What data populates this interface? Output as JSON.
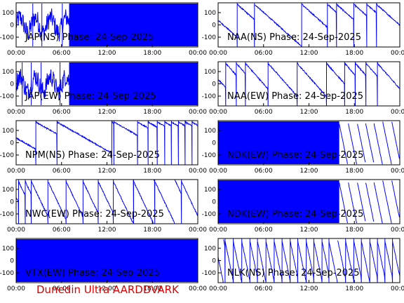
{
  "footer": "Dunedin Ultra AARDDVARK",
  "colors": {
    "trace": "#0000ff",
    "axis": "#000000",
    "background": "#ffffff",
    "footer": "#dd0000"
  },
  "chart_data": [
    {
      "type": "line",
      "title": "JAP(NS) Phase: 24-Sep-2025",
      "x_ticks": [
        "00:00",
        "06:00",
        "12:00",
        "18:00",
        "00:00"
      ],
      "y_ticks": [
        100,
        0,
        -100
      ],
      "ylim": [
        -180,
        180
      ],
      "xlim_hours": [
        0,
        24
      ],
      "pattern": "saturated",
      "saturated_from_hour": 7.0,
      "spikes_hours": [
        2.2,
        3.4,
        6.1
      ]
    },
    {
      "type": "line",
      "title": "NAA(NS) Phase: 24-Sep-2025",
      "x_ticks": [
        "00:00",
        "06:00",
        "12:00",
        "18:00",
        "00:00"
      ],
      "y_ticks": [
        100,
        0,
        -100
      ],
      "ylim": [
        -180,
        180
      ],
      "xlim_hours": [
        0,
        24
      ],
      "pattern": "drift",
      "wraps_hours": [
        2.5,
        4.8,
        11.0,
        14.4,
        15.6,
        17.9,
        19.6,
        20.9
      ],
      "slope_per_hour": -55
    },
    {
      "type": "line",
      "title": "JAP(EW) Phase: 24-Sep-2025",
      "x_ticks": [
        "00:00",
        "06:00",
        "12:00",
        "18:00",
        "00:00"
      ],
      "y_ticks": [
        100,
        0,
        -100
      ],
      "ylim": [
        -180,
        180
      ],
      "xlim_hours": [
        0,
        24
      ],
      "pattern": "saturated",
      "saturated_from_hour": 7.0,
      "spikes_hours": [
        0.8,
        2.0,
        3.3,
        5.8
      ]
    },
    {
      "type": "line",
      "title": "NAA(EW) Phase: 24-Sep-2025",
      "x_ticks": [
        "00:00",
        "06:00",
        "12:00",
        "18:00",
        "00:00"
      ],
      "y_ticks": [
        100,
        0,
        -100
      ],
      "ylim": [
        -180,
        180
      ],
      "xlim_hours": [
        0,
        24
      ],
      "pattern": "drift",
      "wraps_hours": [
        1.0,
        2.4,
        3.6,
        6.6,
        10.4,
        14.3,
        16.7,
        18.1,
        19.5,
        21.0
      ],
      "slope_per_hour": -70
    },
    {
      "type": "line",
      "title": "NPM(NS) Phase: 24-Sep-2025",
      "x_ticks": [
        "00:00",
        "06:00",
        "12:00",
        "18:00",
        "00:00"
      ],
      "y_ticks": [
        100,
        0,
        -100
      ],
      "ylim": [
        -180,
        180
      ],
      "xlim_hours": [
        0,
        24
      ],
      "pattern": "drift",
      "wraps_hours": [
        2.6,
        5.4,
        12.6,
        12.9,
        16.0,
        17.4,
        18.6,
        19.6,
        20.5,
        21.4,
        22.3,
        23.2
      ],
      "slope_per_hour": -35
    },
    {
      "type": "line",
      "title": "NDK(EW) Phase: 24-Sep-2025",
      "x_ticks": [
        "00:00",
        "06:00",
        "12:00",
        "18:00",
        "00:00"
      ],
      "y_ticks": [
        100,
        0,
        -100
      ],
      "ylim": [
        -180,
        180
      ],
      "xlim_hours": [
        0,
        24
      ],
      "pattern": "saturated_until",
      "saturated_until_hour": 16.0,
      "wraps_hours": [
        17.2,
        18.4,
        19.5,
        20.6
      ]
    },
    {
      "type": "line",
      "title": "NWC(EW) Phase: 24-Sep-2025",
      "x_ticks": [
        "00:00",
        "06:00",
        "12:00",
        "18:00",
        "00:00"
      ],
      "y_ticks": [
        100,
        0,
        -100
      ],
      "ylim": [
        -180,
        180
      ],
      "xlim_hours": [
        0,
        24
      ],
      "pattern": "drift",
      "wraps_hours": [
        0.3,
        1.2,
        2.0,
        4.2,
        6.6,
        8.8,
        10.8,
        12.8,
        15.5,
        18.3,
        21.8
      ],
      "slope_per_hour": -130
    },
    {
      "type": "line",
      "title": "NDK(EW) Phase: 24-Sep-2025",
      "x_ticks": [
        "00:00",
        "06:00",
        "12:00",
        "18:00",
        "00:00"
      ],
      "y_ticks": [
        100,
        0,
        -100
      ],
      "ylim": [
        -180,
        180
      ],
      "xlim_hours": [
        0,
        24
      ],
      "pattern": "saturated_until",
      "saturated_until_hour": 16.0,
      "wraps_hours": [
        17.2,
        18.4,
        19.5,
        20.6
      ]
    },
    {
      "type": "line",
      "title": "VTX(EW) Phase: 24-Sep-2025",
      "x_ticks": [
        "00:00",
        "06:00",
        "12:00",
        "18:00",
        "00:00"
      ],
      "y_ticks": [
        100,
        0,
        -100
      ],
      "ylim": [
        -180,
        180
      ],
      "xlim_hours": [
        0,
        24
      ],
      "pattern": "saturated",
      "saturated_from_hour": 0.0,
      "spikes_hours": []
    },
    {
      "type": "line",
      "title": "NLK(NS) Phase: 24-Sep-2025",
      "x_ticks": [
        "00:00",
        "06:00",
        "12:00",
        "18:00",
        "00:00"
      ],
      "y_ticks": [
        100,
        0,
        -100
      ],
      "ylim": [
        -180,
        180
      ],
      "xlim_hours": [
        0,
        24
      ],
      "pattern": "drift",
      "wraps_hours": [
        0.9,
        2.0,
        3.1,
        4.2,
        5.2,
        6.3,
        7.4,
        8.4,
        9.5,
        10.5,
        11.6,
        12.6,
        13.7,
        14.6,
        16.8,
        17.9,
        18.9,
        20.0,
        21.0,
        22.0,
        23.0
      ],
      "slope_per_hour": -300
    }
  ]
}
